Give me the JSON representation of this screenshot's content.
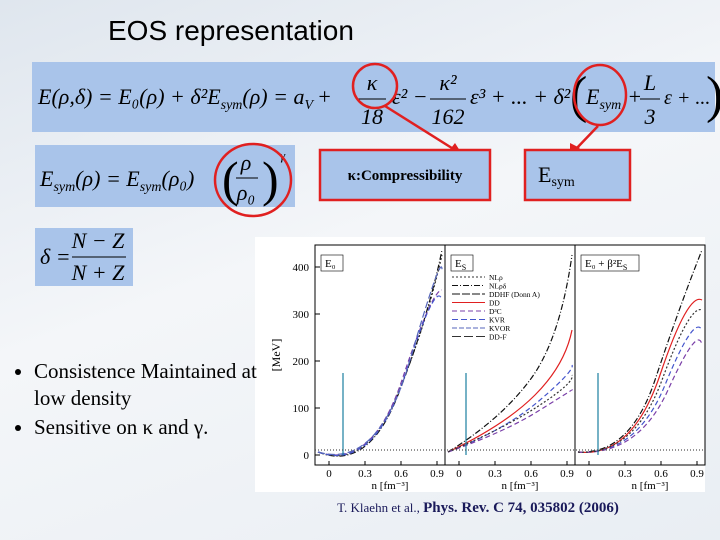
{
  "title": "EOS representation",
  "energy_equation": {
    "part1": "E(ρ,δ) = E₀(ρ) + δ²E",
    "sub1": "sym",
    "part2": "(ρ) = a",
    "sub2": "V",
    "part3": "+",
    "frac1": [
      "κ",
      "18"
    ],
    "part4": "ε² −",
    "frac2": [
      "κ²",
      "162"
    ],
    "part5": "ε³ + ... + δ²",
    "part6": "E",
    "sub3": "sym",
    "part7": "+",
    "frac3": [
      "L",
      "3"
    ],
    "part8": "ε + ..."
  },
  "symmetry_equation": {
    "part1": "E",
    "sub1": "sym",
    "part2": "(ρ) = E",
    "sub2": "sym",
    "part3": "(ρ₀)",
    "frac": [
      "ρ",
      "ρ₀"
    ],
    "power": "γ"
  },
  "delta_equation": {
    "lhs": "δ =",
    "frac": [
      "N − Z",
      "N + Z"
    ]
  },
  "callouts": {
    "compressibility": "κ:Compressibility",
    "esym": "E",
    "esym_sub": "sym"
  },
  "bullets": [
    "Consistence Maintained at low density",
    "Sensitive on κ and γ."
  ],
  "figure": {
    "y_label": "[MeV]",
    "y_ticks": [
      "0",
      "100",
      "200",
      "300",
      "400"
    ],
    "panels": [
      "E₀",
      "E",
      "E₀ + β²E"
    ],
    "panel_subs": [
      "",
      "S",
      "S"
    ],
    "x_ticks": [
      "0",
      "0.3",
      "0.6",
      "0.9"
    ],
    "x_label": "n [fm⁻³]",
    "legend": [
      "NLρ",
      "NLρδ",
      "DDHF (Donn A)",
      "DD",
      "D³C",
      "KVR",
      "KVOR",
      "DD-F"
    ]
  },
  "citation": {
    "authors": "T. Klaehn et al., ",
    "journal": "Phys. Rev. C 74, 035802 (2006)"
  }
}
